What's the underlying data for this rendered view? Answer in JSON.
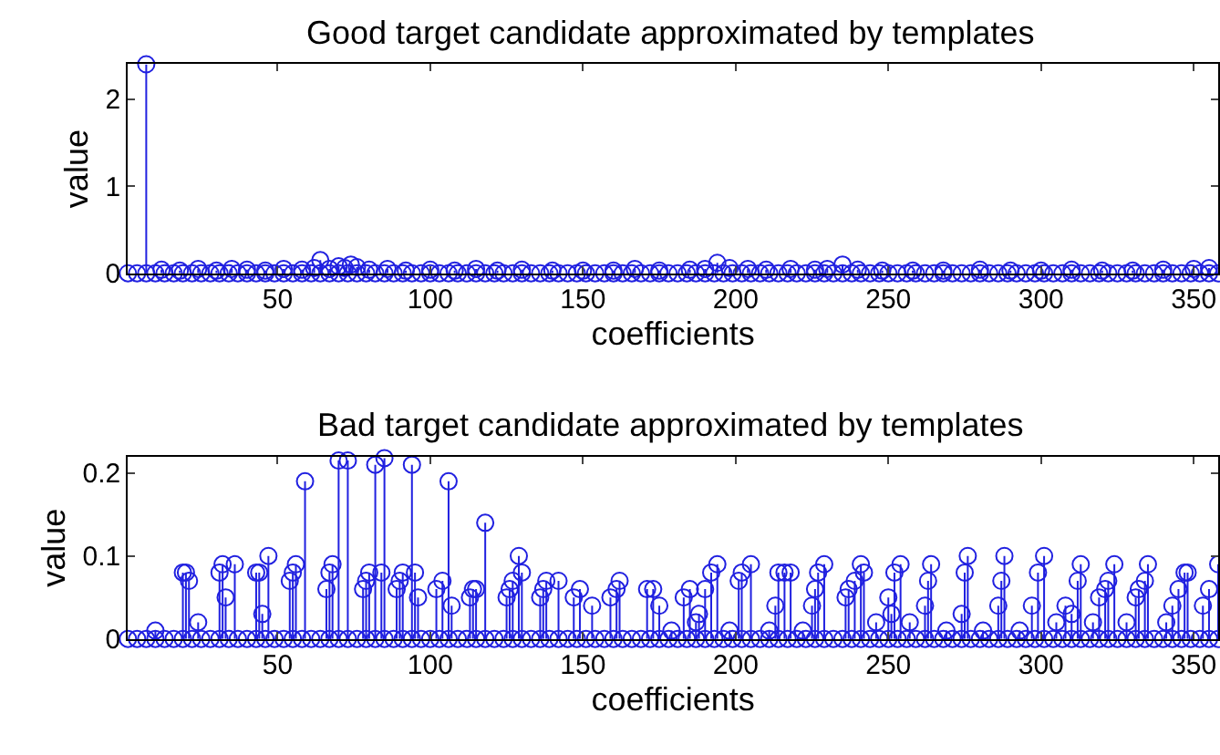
{
  "chart_data": [
    {
      "type": "lollipop",
      "title": "Good target candidate approximated by templates",
      "xlabel": "coefficients",
      "ylabel": "value",
      "marker": "circle",
      "xlim": [
        1,
        358
      ],
      "xticks": [
        50,
        100,
        150,
        200,
        250,
        300,
        350
      ],
      "ylim": [
        0,
        2.4
      ],
      "yticks": [
        0,
        1,
        2
      ],
      "series": [
        {
          "color": "#2020e0",
          "x": [
            7,
            12,
            18,
            24,
            30,
            35,
            40,
            46,
            52,
            58,
            62,
            64,
            67,
            70,
            72,
            74,
            76,
            80,
            86,
            92,
            100,
            108,
            115,
            122,
            130,
            140,
            150,
            160,
            167,
            175,
            185,
            190,
            194,
            198,
            204,
            210,
            218,
            226,
            230,
            235,
            240,
            248,
            258,
            268,
            280,
            290,
            300,
            310,
            320,
            330,
            340,
            350,
            355
          ],
          "values": [
            2.4,
            0.04,
            0.03,
            0.05,
            0.03,
            0.05,
            0.04,
            0.03,
            0.05,
            0.04,
            0.06,
            0.15,
            0.05,
            0.08,
            0.06,
            0.1,
            0.07,
            0.04,
            0.05,
            0.03,
            0.04,
            0.03,
            0.05,
            0.03,
            0.04,
            0.03,
            0.03,
            0.03,
            0.05,
            0.03,
            0.04,
            0.05,
            0.12,
            0.06,
            0.05,
            0.04,
            0.05,
            0.04,
            0.05,
            0.1,
            0.04,
            0.03,
            0.03,
            0.03,
            0.04,
            0.03,
            0.03,
            0.04,
            0.03,
            0.03,
            0.04,
            0.05,
            0.06
          ]
        },
        {
          "color": "#2020e0",
          "x": [
            1,
            4,
            7,
            10,
            13,
            16,
            19,
            22,
            25,
            28,
            31,
            34,
            37,
            40,
            43,
            46,
            49,
            52,
            55,
            58,
            61,
            64,
            67,
            70,
            73,
            76,
            79,
            82,
            85,
            88,
            91,
            94,
            97,
            100,
            103,
            106,
            109,
            112,
            115,
            118,
            121,
            124,
            127,
            130,
            133,
            136,
            139,
            142,
            145,
            148,
            151,
            154,
            157,
            160,
            163,
            166,
            169,
            172,
            175,
            178,
            181,
            184,
            187,
            190,
            193,
            196,
            199,
            202,
            205,
            208,
            211,
            214,
            217,
            220,
            223,
            226,
            229,
            232,
            235,
            238,
            241,
            244,
            247,
            250,
            253,
            256,
            259,
            262,
            265,
            268,
            271,
            274,
            277,
            280,
            283,
            286,
            289,
            292,
            295,
            298,
            301,
            304,
            307,
            310,
            313,
            316,
            319,
            322,
            325,
            328,
            331,
            334,
            337,
            340,
            343,
            346,
            349,
            352,
            355,
            358
          ],
          "values": [
            0,
            0,
            0,
            0,
            0,
            0,
            0,
            0,
            0,
            0,
            0,
            0,
            0,
            0,
            0,
            0,
            0,
            0,
            0,
            0,
            0,
            0,
            0,
            0,
            0,
            0,
            0,
            0,
            0,
            0,
            0,
            0,
            0,
            0,
            0,
            0,
            0,
            0,
            0,
            0,
            0,
            0,
            0,
            0,
            0,
            0,
            0,
            0,
            0,
            0,
            0,
            0,
            0,
            0,
            0,
            0,
            0,
            0,
            0,
            0,
            0,
            0,
            0,
            0,
            0,
            0,
            0,
            0,
            0,
            0,
            0,
            0,
            0,
            0,
            0,
            0,
            0,
            0,
            0,
            0,
            0,
            0,
            0,
            0,
            0,
            0,
            0,
            0,
            0,
            0,
            0,
            0,
            0,
            0,
            0,
            0,
            0,
            0,
            0,
            0,
            0,
            0,
            0,
            0,
            0,
            0,
            0,
            0,
            0,
            0,
            0,
            0,
            0,
            0,
            0,
            0,
            0,
            0,
            0,
            0
          ]
        }
      ]
    },
    {
      "type": "lollipop",
      "title": "Bad target candidate approximated by templates",
      "xlabel": "coefficients",
      "ylabel": "value",
      "marker": "circle",
      "xlim": [
        1,
        358
      ],
      "xticks": [
        50,
        100,
        150,
        200,
        250,
        300,
        350
      ],
      "ylim": [
        0,
        0.22
      ],
      "yticks": [
        0,
        0.1,
        0.2
      ],
      "series": [
        {
          "color": "#2020e0",
          "x": [
            10,
            19,
            20,
            21,
            24,
            31,
            32,
            33,
            36,
            43,
            44,
            45,
            47,
            54,
            55,
            56,
            59,
            66,
            67,
            68,
            70,
            73,
            78,
            79,
            80,
            82,
            84,
            85,
            89,
            90,
            91,
            94,
            95,
            96,
            102,
            104,
            106,
            107,
            113,
            114,
            115,
            118,
            125,
            126,
            127,
            129,
            130,
            136,
            137,
            138,
            142,
            147,
            149,
            153,
            159,
            161,
            162,
            171,
            173,
            175,
            179,
            183,
            185,
            187,
            188,
            190,
            192,
            194,
            198,
            201,
            202,
            205,
            211,
            213,
            214,
            216,
            218,
            222,
            225,
            226,
            227,
            229,
            236,
            237,
            239,
            241,
            242,
            246,
            250,
            251,
            252,
            254,
            257,
            262,
            263,
            264,
            269,
            274,
            275,
            276,
            281,
            286,
            287,
            288,
            293,
            297,
            299,
            301,
            305,
            308,
            310,
            312,
            313,
            317,
            319,
            321,
            322,
            324,
            328,
            331,
            332,
            334,
            335,
            341,
            343,
            345,
            347,
            348,
            353,
            355,
            358
          ],
          "values": [
            0.01,
            0.08,
            0.08,
            0.07,
            0.02,
            0.08,
            0.09,
            0.05,
            0.09,
            0.08,
            0.08,
            0.03,
            0.1,
            0.07,
            0.08,
            0.09,
            0.19,
            0.06,
            0.08,
            0.09,
            0.215,
            0.215,
            0.06,
            0.07,
            0.08,
            0.21,
            0.08,
            0.218,
            0.06,
            0.07,
            0.08,
            0.21,
            0.08,
            0.05,
            0.06,
            0.07,
            0.19,
            0.04,
            0.05,
            0.06,
            0.06,
            0.14,
            0.05,
            0.06,
            0.07,
            0.1,
            0.08,
            0.05,
            0.06,
            0.07,
            0.07,
            0.05,
            0.06,
            0.04,
            0.05,
            0.06,
            0.07,
            0.06,
            0.06,
            0.04,
            0.01,
            0.05,
            0.06,
            0.02,
            0.03,
            0.06,
            0.08,
            0.09,
            0.01,
            0.07,
            0.08,
            0.09,
            0.01,
            0.04,
            0.08,
            0.08,
            0.08,
            0.01,
            0.04,
            0.06,
            0.08,
            0.09,
            0.05,
            0.06,
            0.07,
            0.09,
            0.08,
            0.02,
            0.05,
            0.03,
            0.08,
            0.09,
            0.02,
            0.04,
            0.07,
            0.09,
            0.01,
            0.03,
            0.08,
            0.1,
            0.01,
            0.04,
            0.07,
            0.1,
            0.01,
            0.04,
            0.08,
            0.1,
            0.02,
            0.04,
            0.03,
            0.07,
            0.09,
            0.02,
            0.05,
            0.06,
            0.07,
            0.09,
            0.02,
            0.05,
            0.06,
            0.07,
            0.09,
            0.02,
            0.04,
            0.06,
            0.08,
            0.08,
            0.04,
            0.06,
            0.09
          ]
        },
        {
          "color": "#2020e0",
          "x": [
            1,
            4,
            7,
            10,
            13,
            16,
            19,
            22,
            25,
            28,
            31,
            34,
            37,
            40,
            43,
            46,
            49,
            52,
            55,
            58,
            61,
            64,
            67,
            70,
            73,
            76,
            79,
            82,
            85,
            88,
            91,
            94,
            97,
            100,
            103,
            106,
            109,
            112,
            115,
            118,
            121,
            124,
            127,
            130,
            133,
            136,
            139,
            142,
            145,
            148,
            151,
            154,
            157,
            160,
            163,
            166,
            169,
            172,
            175,
            178,
            181,
            184,
            187,
            190,
            193,
            196,
            199,
            202,
            205,
            208,
            211,
            214,
            217,
            220,
            223,
            226,
            229,
            232,
            235,
            238,
            241,
            244,
            247,
            250,
            253,
            256,
            259,
            262,
            265,
            268,
            271,
            274,
            277,
            280,
            283,
            286,
            289,
            292,
            295,
            298,
            301,
            304,
            307,
            310,
            313,
            316,
            319,
            322,
            325,
            328,
            331,
            334,
            337,
            340,
            343,
            346,
            349,
            352,
            355,
            358
          ],
          "values": [
            0,
            0,
            0,
            0,
            0,
            0,
            0,
            0,
            0,
            0,
            0,
            0,
            0,
            0,
            0,
            0,
            0,
            0,
            0,
            0,
            0,
            0,
            0,
            0,
            0,
            0,
            0,
            0,
            0,
            0,
            0,
            0,
            0,
            0,
            0,
            0,
            0,
            0,
            0,
            0,
            0,
            0,
            0,
            0,
            0,
            0,
            0,
            0,
            0,
            0,
            0,
            0,
            0,
            0,
            0,
            0,
            0,
            0,
            0,
            0,
            0,
            0,
            0,
            0,
            0,
            0,
            0,
            0,
            0,
            0,
            0,
            0,
            0,
            0,
            0,
            0,
            0,
            0,
            0,
            0,
            0,
            0,
            0,
            0,
            0,
            0,
            0,
            0,
            0,
            0,
            0,
            0,
            0,
            0,
            0,
            0,
            0,
            0,
            0,
            0,
            0,
            0,
            0,
            0,
            0,
            0,
            0,
            0,
            0,
            0,
            0,
            0,
            0,
            0,
            0,
            0,
            0,
            0,
            0,
            0
          ]
        }
      ]
    }
  ]
}
